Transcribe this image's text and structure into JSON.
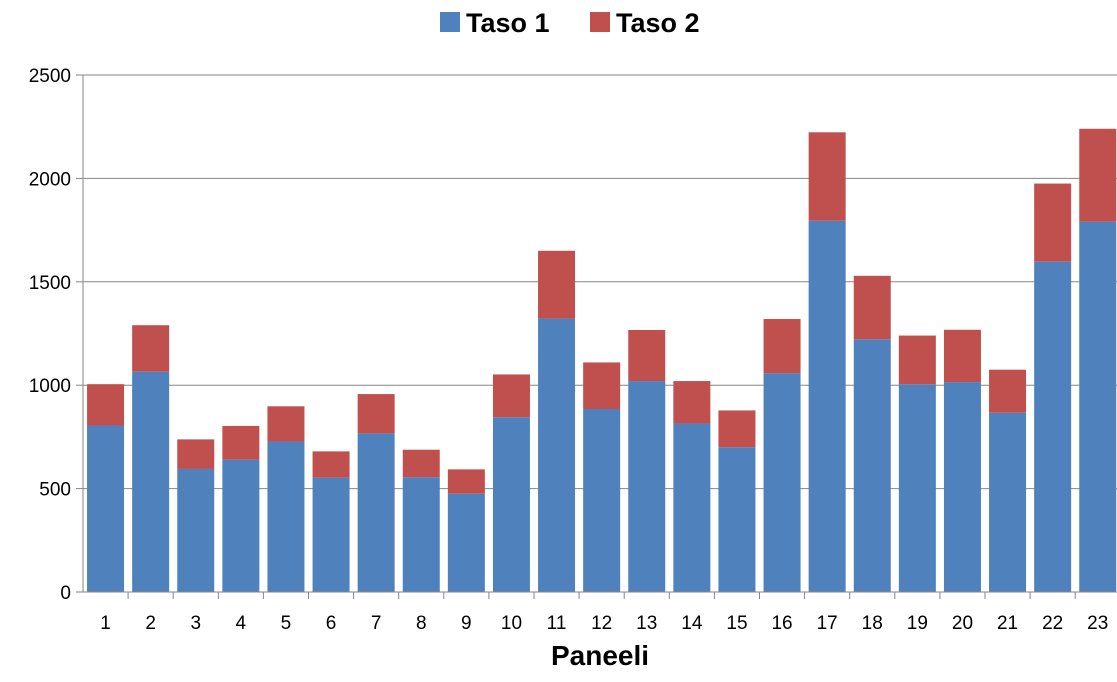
{
  "chart_data": {
    "type": "bar",
    "stacked": true,
    "title": "",
    "xlabel": "Paneeli",
    "ylabel": "",
    "ylim": [
      0,
      2500
    ],
    "yticks": [
      0,
      500,
      1000,
      1500,
      2000,
      2500
    ],
    "grid": true,
    "legend_position": "top",
    "categories": [
      "1",
      "2",
      "3",
      "4",
      "5",
      "6",
      "7",
      "8",
      "9",
      "10",
      "11",
      "12",
      "13",
      "14",
      "15",
      "16",
      "17",
      "18",
      "19",
      "20",
      "21",
      "22",
      "23"
    ],
    "series": [
      {
        "name": "Taso 1",
        "color": "#4F81BD",
        "values": [
          805,
          1065,
          595,
          640,
          728,
          553,
          767,
          555,
          475,
          845,
          1322,
          885,
          1020,
          815,
          700,
          1058,
          1795,
          1222,
          1005,
          1015,
          867,
          1597,
          1790
        ]
      },
      {
        "name": "Taso 2",
        "color": "#C0504D",
        "values": [
          200,
          225,
          143,
          163,
          170,
          127,
          190,
          133,
          118,
          207,
          328,
          225,
          247,
          205,
          178,
          262,
          428,
          307,
          235,
          253,
          208,
          378,
          450
        ]
      }
    ]
  }
}
